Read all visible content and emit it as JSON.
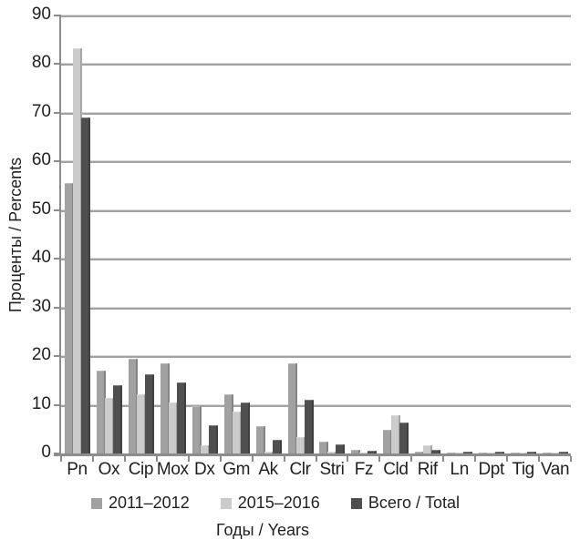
{
  "chart_data": {
    "type": "bar",
    "categories": [
      "Pn",
      "Ox",
      "Cip",
      "Mox",
      "Dx",
      "Gm",
      "Ak",
      "Clr",
      "Stri",
      "Fz",
      "Cld",
      "Rif",
      "Ln",
      "Dpt",
      "Tig",
      "Van"
    ],
    "series": [
      {
        "name": "2011–2012",
        "color": "#a1a1a1",
        "values": [
          55.5,
          17.0,
          19.5,
          18.6,
          9.8,
          12.2,
          5.6,
          18.5,
          2.4,
          0.8,
          4.9,
          0.3,
          0.2,
          0.2,
          0.2,
          0.2
        ]
      },
      {
        "name": "2015–2016",
        "color": "#cbcbcb",
        "values": [
          83.2,
          11.5,
          12.2,
          10.5,
          1.7,
          8.6,
          0.3,
          3.4,
          0.3,
          0.2,
          7.8,
          1.6,
          0.2,
          0.2,
          0.2,
          0.2
        ]
      },
      {
        "name": "Всего / Total",
        "color": "#4f4f4f",
        "values": [
          69.0,
          14.0,
          16.3,
          14.6,
          5.8,
          10.4,
          2.8,
          11.1,
          1.8,
          0.5,
          6.4,
          0.8,
          0.3,
          0.3,
          0.3,
          0.3
        ]
      }
    ],
    "xlabel": "Годы / Years",
    "ylabel": "Проценты / Percents",
    "ylim": [
      0,
      90
    ],
    "ytick_step": 10,
    "grid": true,
    "legend_position": "bottom"
  },
  "colors": {
    "background": "#ffffff",
    "axis": "#8c8c8c",
    "gridline": "#a2a2a2",
    "text": "#1f1f1f"
  }
}
